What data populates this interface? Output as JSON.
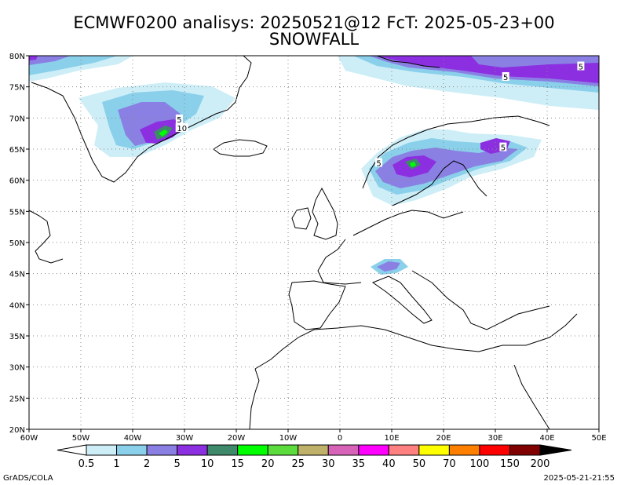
{
  "title_line1": "ECMWF0200 analisys: 20250521@12 FcT: 2025-05-23+00",
  "title_line2": "SNOWFALL",
  "axes": {
    "lon_labels": [
      "60W",
      "50W",
      "40W",
      "30W",
      "20W",
      "10W",
      "0",
      "10E",
      "20E",
      "30E",
      "40E",
      "50E"
    ],
    "lat_labels": [
      "20N",
      "25N",
      "30N",
      "35N",
      "40N",
      "45N",
      "50N",
      "55N",
      "60N",
      "65N",
      "70N",
      "75N",
      "80N"
    ],
    "lon_range": [
      -60,
      50
    ],
    "lat_range": [
      20,
      80
    ],
    "grid": true
  },
  "contour_labels": [
    {
      "text": "5",
      "lon": 46.5,
      "lat": 78.3
    },
    {
      "text": "5",
      "lon": 32,
      "lat": 76.6
    },
    {
      "text": "5",
      "lon": -31,
      "lat": 69.8
    },
    {
      "text": "10",
      "lon": -30.5,
      "lat": 68.4
    },
    {
      "text": "5",
      "lon": 7.5,
      "lat": 62.8
    },
    {
      "text": "5",
      "lon": 31.5,
      "lat": 65.3
    }
  ],
  "colorbar": {
    "labels": [
      "0.5",
      "1",
      "2",
      "5",
      "10",
      "15",
      "20",
      "25",
      "30",
      "35",
      "40",
      "50",
      "70",
      "100",
      "150",
      "200"
    ],
    "colors": [
      "#cdeef7",
      "#8ad0ea",
      "#8a80e4",
      "#8c2fe0",
      "#3e8a6a",
      "#00ff00",
      "#5cdb3c",
      "#bfb06a",
      "#d763b8",
      "#ff00ff",
      "#ff8080",
      "#ffff00",
      "#ff8000",
      "#ff0000",
      "#800000"
    ]
  },
  "footer_left": "GrADS/COLA",
  "footer_right": "2025-05-21-21:55"
}
